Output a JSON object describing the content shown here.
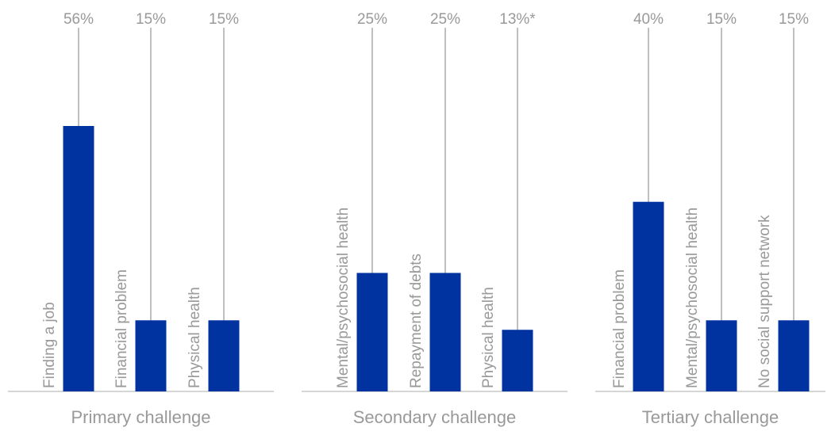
{
  "colors": {
    "bar": "#0033A0",
    "label": "#999999",
    "leader": "#BFBFBF",
    "axis": "#C8C8C8"
  },
  "chart_data": [
    {
      "type": "bar",
      "xlabel": "Primary challenge",
      "ylim": [
        0,
        56
      ],
      "categories": [
        "Finding a job",
        "Financial problem",
        "Physical health"
      ],
      "values": [
        56,
        15,
        15
      ],
      "value_labels": [
        "56%",
        "15%",
        "15%"
      ]
    },
    {
      "type": "bar",
      "xlabel": "Secondary challenge",
      "ylim": [
        0,
        56
      ],
      "categories": [
        "Mental/psychosocial health",
        "Repayment of debts",
        "Physical health"
      ],
      "values": [
        25,
        25,
        13
      ],
      "value_labels": [
        "25%",
        "25%",
        "13%*"
      ]
    },
    {
      "type": "bar",
      "xlabel": "Tertiary challenge",
      "ylim": [
        0,
        56
      ],
      "categories": [
        "Financial problem",
        "Mental/psychosocial health",
        "No social support network"
      ],
      "values": [
        40,
        15,
        15
      ],
      "value_labels": [
        "40%",
        "15%",
        "15%"
      ]
    }
  ]
}
